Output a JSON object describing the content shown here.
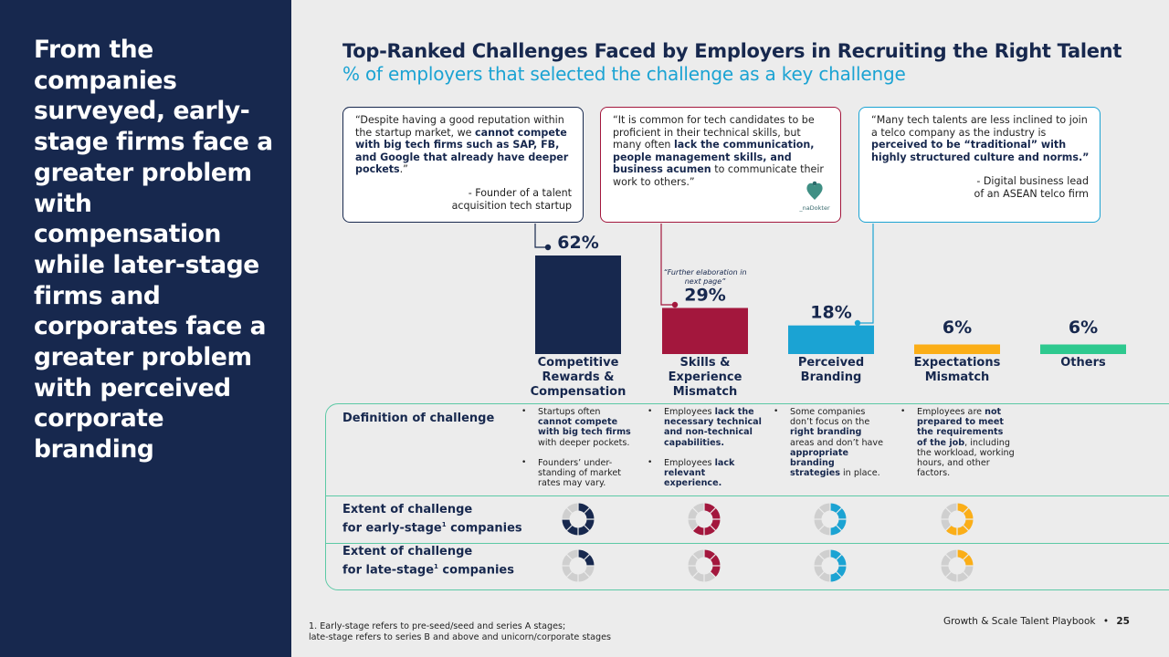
{
  "sidebar": {
    "heading": "From the companies surveyed, early-stage firms face a greater problem with compensation while later-stage firms and corporates face a greater problem with perceived corporate branding"
  },
  "header": {
    "title": "Top-Ranked Challenges Faced by Employers in Recruiting the Right Talent",
    "subtitle": "% of employers that selected the challenge as a key challenge"
  },
  "quotes": [
    {
      "parts": [
        {
          "t": "“Despite having a good reputation within the startup market, we ",
          "b": false
        },
        {
          "t": "cannot compete with big tech firms such as SAP, FB, and Google that already have deeper pockets",
          "b": true
        },
        {
          "t": ".”",
          "b": false
        }
      ],
      "source_line1": "- Founder of a talent",
      "source_line2": "acquisition tech startup"
    },
    {
      "parts": [
        {
          "t": "“It is common for tech candidates to be proficient in their technical skills, but many often ",
          "b": false
        },
        {
          "t": "lack the communication, people management skills, and business acumen",
          "b": true
        },
        {
          "t": " to communicate their work to others.”",
          "b": false
        }
      ],
      "logo_text": "_naDokter"
    },
    {
      "parts": [
        {
          "t": "“Many tech talents are less inclined to join a telco company as the industry is ",
          "b": false
        },
        {
          "t": "perceived to be “traditional” with highly structured culture and norms.”",
          "b": true
        }
      ],
      "source_line1": "- Digital business lead",
      "source_line2": "of an ASEAN telco firm"
    }
  ],
  "note": "“Further elaboration in next page”",
  "chart_data": {
    "type": "bar",
    "categories": [
      "Competitive Rewards & Compensation",
      "Skills & Experience Mismatch",
      "Perceived Branding",
      "Expectations Mismatch",
      "Others"
    ],
    "category_lines": [
      [
        "Competitive",
        "Rewards &",
        "Compensation"
      ],
      [
        "Skills &",
        "Experience",
        "Mismatch"
      ],
      [
        "Perceived",
        "Branding"
      ],
      [
        "Expectations",
        "Mismatch"
      ],
      [
        "Others"
      ]
    ],
    "values": [
      62,
      29,
      18,
      6,
      6
    ],
    "value_labels": [
      "62%",
      "29%",
      "18%",
      "6%",
      "6%"
    ],
    "colors": [
      "#17284e",
      "#a3173d",
      "#1ba3d3",
      "#fbae17",
      "#2ec98f"
    ],
    "ylim": [
      0,
      62
    ]
  },
  "table": {
    "definition_label": "Definition of challenge",
    "early_label_a": "Extent of challenge",
    "early_label_b": "for early-stage",
    "early_label_c": " companies",
    "late_label_a": "Extent of challenge",
    "late_label_b": "for late-stage",
    "late_label_c": " companies",
    "footnote_mark": "1",
    "definitions": [
      [
        [
          {
            "t": "Startups often ",
            "b": false
          },
          {
            "t": "cannot compete with big tech firms",
            "b": true
          },
          {
            "t": " with deeper pockets.",
            "b": false
          }
        ],
        [
          {
            "t": "Founders’ under-standing of market rates may vary.",
            "b": false
          }
        ]
      ],
      [
        [
          {
            "t": "Employees ",
            "b": false
          },
          {
            "t": "lack the necessary technical and non-technical capabilities.",
            "b": true
          }
        ],
        [
          {
            "t": "Employees ",
            "b": false
          },
          {
            "t": "lack relevant experience.",
            "b": true
          }
        ]
      ],
      [
        [
          {
            "t": "Some companies don’t focus on the ",
            "b": false
          },
          {
            "t": "right branding",
            "b": true
          },
          {
            "t": " areas and don’t have ",
            "b": false
          },
          {
            "t": "appropriate branding strategies",
            "b": true
          },
          {
            "t": " in place.",
            "b": false
          }
        ]
      ],
      [
        [
          {
            "t": "Employees are ",
            "b": false
          },
          {
            "t": "not prepared to meet the requirements of the job",
            "b": true
          },
          {
            "t": ", including the workload, working hours, and other factors.",
            "b": false
          }
        ]
      ]
    ],
    "extent_early_fraction": [
      0.75,
      0.625,
      0.5,
      0.625
    ],
    "extent_late_fraction": [
      0.25,
      0.375,
      0.5,
      0.25
    ]
  },
  "footnote": {
    "line1": "1. Early-stage refers to pre-seed/seed and series A stages;",
    "line2": "late-stage refers to series B and above and unicorn/corporate stages"
  },
  "page_footer": {
    "label": "Growth & Scale Talent Playbook",
    "separator": "•",
    "page_number": "25"
  }
}
